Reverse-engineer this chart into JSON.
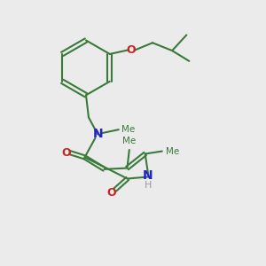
{
  "background_color": "#ebebeb",
  "bond_color": "#3a7a3a",
  "N_color": "#2222cc",
  "O_color": "#cc2222",
  "H_color": "#999999",
  "line_width": 1.5,
  "figsize": [
    3.0,
    3.0
  ],
  "dpi": 100,
  "xlim": [
    0,
    10
  ],
  "ylim": [
    0,
    10
  ]
}
